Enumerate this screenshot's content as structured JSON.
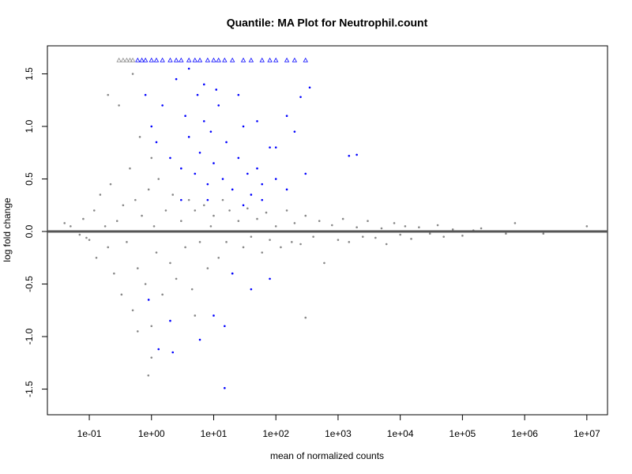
{
  "chart_data": {
    "type": "scatter",
    "title": "Quantile: MA Plot for Neutrophil.count",
    "x_label": "mean of normalized counts",
    "y_label": "log fold change",
    "xscale": "log",
    "xlim": [
      0.0212,
      21500000
    ],
    "ylim": [
      -1.744,
      1.767
    ],
    "xticks": [
      {
        "value": 0.1,
        "label": "1e-01"
      },
      {
        "value": 1,
        "label": "1e+00"
      },
      {
        "value": 10,
        "label": "1e+01"
      },
      {
        "value": 100,
        "label": "1e+02"
      },
      {
        "value": 1000,
        "label": "1e+03"
      },
      {
        "value": 10000,
        "label": "1e+04"
      },
      {
        "value": 100000,
        "label": "1e+05"
      },
      {
        "value": 1000000,
        "label": "1e+06"
      },
      {
        "value": 10000000,
        "label": "1e+07"
      }
    ],
    "yticks": [
      -1.5,
      {
        "value": -1,
        "label": "-1.0"
      },
      -0.5,
      {
        "value": 0,
        "label": "0.0"
      },
      0.5,
      {
        "value": 1,
        "label": "1.0"
      },
      1.5
    ],
    "hline": {
      "value": 0,
      "color": "#555555"
    },
    "series": [
      {
        "color": "#888888",
        "marker": "circle",
        "x": [
          0.05,
          0.07,
          0.08,
          0.1,
          0.12,
          0.13,
          0.15,
          0.18,
          0.2,
          0.22,
          0.25,
          0.28,
          0.3,
          0.33,
          0.35,
          0.4,
          0.45,
          0.5,
          0.55,
          0.6,
          0.65,
          0.7,
          0.8,
          0.9,
          1,
          1.1,
          1.2,
          1.3,
          1.5,
          1.7,
          2,
          2.2,
          2.5,
          3,
          3.5,
          4,
          4.5,
          5,
          6,
          7,
          8,
          9,
          10,
          12,
          14,
          16,
          18,
          20,
          25,
          30,
          35,
          40,
          50,
          60,
          70,
          80,
          100,
          120,
          150,
          180,
          200,
          250,
          300,
          400,
          500,
          600,
          800,
          1000,
          1200,
          1500,
          2000,
          2500,
          3000,
          4000,
          5000,
          6000,
          8000,
          10000,
          12000,
          15000,
          20000,
          30000,
          40000,
          50000,
          70000,
          100000,
          150000,
          200000,
          500000,
          700000,
          2000000,
          10000000,
          0.04,
          0.09,
          1,
          5,
          0.89,
          1,
          0.6,
          300,
          0.2,
          0.5
        ],
        "values": [
          0.05,
          -0.03,
          0.12,
          -0.08,
          0.2,
          -0.25,
          0.35,
          0.05,
          -0.15,
          0.45,
          -0.4,
          0.1,
          1.2,
          -0.6,
          0.25,
          -0.1,
          0.6,
          -0.75,
          0.3,
          -0.35,
          0.9,
          0.15,
          -0.5,
          0.4,
          -0.9,
          0.05,
          -0.2,
          0.5,
          -0.6,
          0.2,
          -0.3,
          0.35,
          -0.45,
          0.1,
          -0.15,
          0.3,
          -0.55,
          0.2,
          -0.1,
          0.25,
          -0.35,
          0.05,
          0.15,
          -0.25,
          0.3,
          -0.1,
          0.2,
          -0.4,
          0.1,
          -0.15,
          0.22,
          -0.05,
          0.12,
          -0.2,
          0.18,
          -0.08,
          0.05,
          -0.15,
          0.2,
          -0.1,
          0.08,
          -0.12,
          0.15,
          -0.05,
          0.1,
          -0.3,
          0.06,
          -0.08,
          0.12,
          -0.1,
          0.04,
          -0.05,
          0.1,
          -0.06,
          0.03,
          -0.12,
          0.08,
          -0.03,
          0.05,
          -0.07,
          0.04,
          -0.02,
          0.06,
          -0.05,
          0.02,
          -0.04,
          0.01,
          0.03,
          -0.02,
          0.08,
          -0.02,
          0.05,
          0.08,
          -0.06,
          0.7,
          -0.8,
          -1.37,
          -1.2,
          -0.95,
          -0.82,
          1.3,
          1.5
        ]
      },
      {
        "color": "#0000ff",
        "marker": "circle",
        "x": [
          0.8,
          1,
          1.2,
          1.5,
          2,
          2.5,
          3,
          3.5,
          4,
          5,
          5.5,
          6,
          7,
          8,
          9,
          10,
          12,
          14,
          16,
          20,
          25,
          30,
          35,
          40,
          50,
          60,
          80,
          100,
          150,
          200,
          300,
          1500,
          2000,
          0.9,
          2,
          1.3,
          2.2,
          6,
          15,
          10,
          20,
          40,
          80,
          15,
          3,
          4,
          7,
          11,
          25,
          50,
          100,
          150,
          250,
          350,
          8,
          30,
          60
        ],
        "values": [
          1.3,
          1.0,
          0.85,
          1.2,
          0.7,
          1.45,
          0.6,
          1.1,
          0.9,
          0.55,
          1.3,
          0.75,
          1.05,
          0.45,
          0.95,
          0.65,
          1.2,
          0.5,
          0.85,
          0.4,
          0.7,
          1.0,
          0.55,
          0.35,
          0.6,
          0.45,
          0.8,
          0.5,
          0.4,
          0.95,
          0.55,
          0.72,
          0.73,
          -0.65,
          -0.85,
          -1.12,
          -1.15,
          -1.03,
          -1.49,
          -0.8,
          -0.4,
          -0.55,
          -0.45,
          -0.9,
          0.3,
          1.55,
          1.4,
          1.35,
          1.3,
          1.05,
          0.8,
          1.1,
          1.28,
          1.37,
          0.3,
          0.25,
          0.3
        ]
      },
      {
        "color": "#888888",
        "marker": "triangle",
        "x": [
          0.3,
          0.35,
          0.4,
          0.45,
          0.5
        ],
        "values": [
          1.63,
          1.63,
          1.63,
          1.63,
          1.63
        ]
      },
      {
        "color": "#0000ff",
        "marker": "triangle",
        "x": [
          0.6,
          0.7,
          0.8,
          1,
          1.2,
          1.5,
          2,
          2.5,
          3,
          4,
          5,
          6,
          8,
          10,
          12,
          15,
          20,
          30,
          40,
          60,
          80,
          100,
          150,
          200,
          300
        ],
        "values": [
          1.63,
          1.63,
          1.63,
          1.63,
          1.63,
          1.63,
          1.63,
          1.63,
          1.63,
          1.63,
          1.63,
          1.63,
          1.63,
          1.63,
          1.63,
          1.63,
          1.63,
          1.63,
          1.63,
          1.63,
          1.63,
          1.63,
          1.63,
          1.63,
          1.63
        ]
      }
    ]
  }
}
